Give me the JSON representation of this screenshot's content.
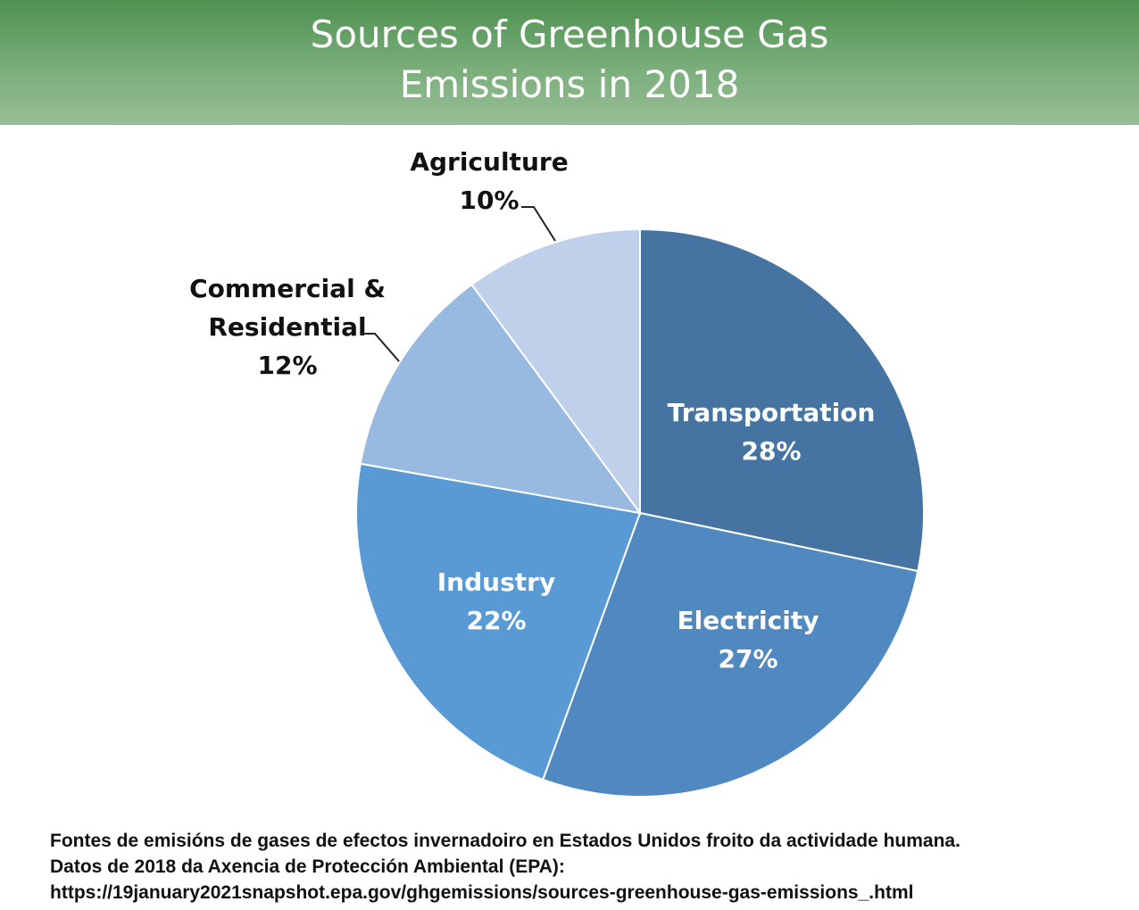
{
  "header": {
    "title_line1": "Sources of Greenhouse Gas",
    "title_line2": "Emissions in 2018"
  },
  "chart_data": {
    "type": "pie",
    "title": "Sources of Greenhouse Gas Emissions in 2018",
    "start_angle_deg": 0,
    "direction": "clockwise",
    "slices": [
      {
        "label": "Transportation",
        "value": 28,
        "pct": "28%",
        "color": "#4674a2",
        "label_color": "#ffffff"
      },
      {
        "label": "Electricity",
        "value": 27,
        "pct": "27%",
        "color": "#4f89bf",
        "label_color": "#ffffff"
      },
      {
        "label": "Industry",
        "value": 22,
        "pct": "22%",
        "color": "#5a9ad4",
        "label_color": "#ffffff"
      },
      {
        "label": "Commercial & Residential",
        "label_lines": [
          "Commercial &",
          "Residential"
        ],
        "value": 12,
        "pct": "12%",
        "color": "#98b9e0",
        "label_color": "#111111"
      },
      {
        "label": "Agriculture",
        "value": 10,
        "pct": "10%",
        "color": "#bfd0ea",
        "label_color": "#111111"
      }
    ]
  },
  "caption": {
    "line1": "Fontes de emisións de gases de efectos invernadoiro en Estados Unidos froito da actividade humana.",
    "line2": "Datos de 2018 da Axencia de Protección Ambiental (EPA):",
    "line3": "https://19january2021snapshot.epa.gov/ghgemissions/sources-greenhouse-gas-emissions_.html"
  }
}
